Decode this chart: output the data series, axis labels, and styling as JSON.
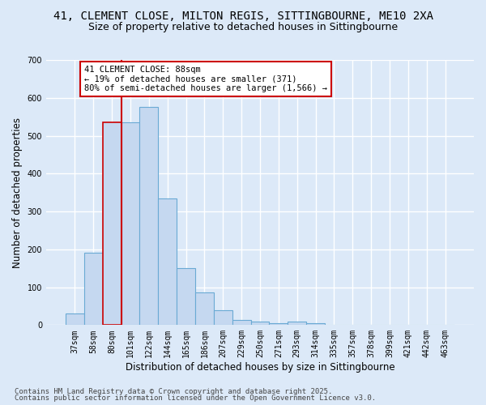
{
  "title_line1": "41, CLEMENT CLOSE, MILTON REGIS, SITTINGBOURNE, ME10 2XA",
  "title_line2": "Size of property relative to detached houses in Sittingbourne",
  "xlabel": "Distribution of detached houses by size in Sittingbourne",
  "ylabel": "Number of detached properties",
  "categories": [
    "37sqm",
    "58sqm",
    "80sqm",
    "101sqm",
    "122sqm",
    "144sqm",
    "165sqm",
    "186sqm",
    "207sqm",
    "229sqm",
    "250sqm",
    "271sqm",
    "293sqm",
    "314sqm",
    "335sqm",
    "357sqm",
    "378sqm",
    "399sqm",
    "421sqm",
    "442sqm",
    "463sqm"
  ],
  "values": [
    30,
    192,
    535,
    535,
    575,
    335,
    150,
    87,
    40,
    13,
    10,
    5,
    10,
    5,
    0,
    0,
    0,
    0,
    0,
    0,
    0
  ],
  "bar_color": "#c5d8f0",
  "bar_edge_color": "#6aaad4",
  "highlight_index": 2,
  "vline_color": "#cc0000",
  "vline_x": 2.5,
  "ylim": [
    0,
    700
  ],
  "yticks": [
    0,
    100,
    200,
    300,
    400,
    500,
    600,
    700
  ],
  "annotation_text": "41 CLEMENT CLOSE: 88sqm\n← 19% of detached houses are smaller (371)\n80% of semi-detached houses are larger (1,566) →",
  "annotation_box_color": "#ffffff",
  "annotation_box_edge": "#cc0000",
  "footer_line1": "Contains HM Land Registry data © Crown copyright and database right 2025.",
  "footer_line2": "Contains public sector information licensed under the Open Government Licence v3.0.",
  "bg_color": "#dce9f8",
  "plot_bg_color": "#dce9f8",
  "grid_color": "#ffffff",
  "title_fontsize": 10,
  "subtitle_fontsize": 9,
  "axis_label_fontsize": 8.5,
  "tick_fontsize": 7,
  "footer_fontsize": 6.5,
  "annot_fontsize": 7.5
}
